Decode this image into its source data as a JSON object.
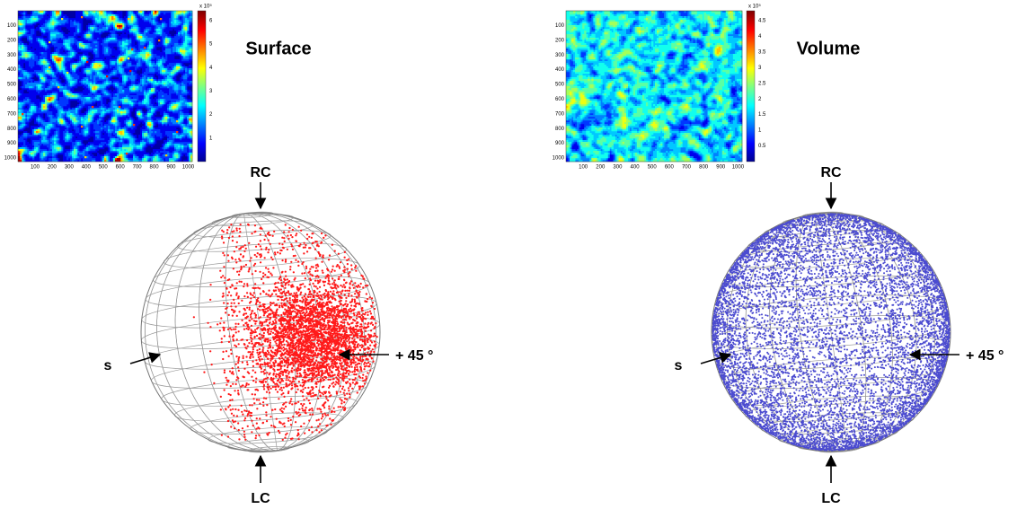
{
  "panels": [
    {
      "title": "Surface",
      "heatmap": {
        "xticks": [
          100,
          200,
          300,
          400,
          500,
          600,
          700,
          800,
          900,
          1000
        ],
        "yticks": [
          100,
          200,
          300,
          400,
          500,
          600,
          700,
          800,
          900,
          1000
        ],
        "colorbar": {
          "exponent": "x 10⁵",
          "ticks": [
            1,
            2,
            3,
            4,
            5,
            6
          ]
        }
      },
      "sphere": {
        "top": "RC",
        "bottom": "LC",
        "left": "s",
        "right": "+ 45 °"
      }
    },
    {
      "title": "Volume",
      "heatmap": {
        "xticks": [
          100,
          200,
          300,
          400,
          500,
          600,
          700,
          800,
          900,
          1000
        ],
        "yticks": [
          100,
          200,
          300,
          400,
          500,
          600,
          700,
          800,
          900,
          1000
        ],
        "colorbar": {
          "exponent": "x 10⁵",
          "ticks": [
            0.5,
            1,
            1.5,
            2,
            2.5,
            3,
            3.5,
            4,
            4.5
          ]
        }
      },
      "sphere": {
        "top": "RC",
        "bottom": "LC",
        "left": "s",
        "right": "+ 45 °"
      }
    }
  ]
}
